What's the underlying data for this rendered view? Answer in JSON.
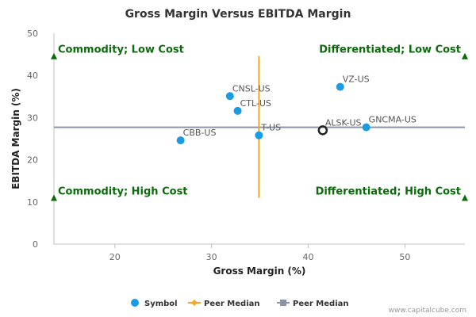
{
  "chart_data": {
    "type": "scatter",
    "title": "Gross Margin Versus EBITDA Margin",
    "xlabel": "Gross Margin (%)",
    "ylabel": "EBITDA Margin (%)",
    "xlim": [
      13.7,
      56.2
    ],
    "ylim": [
      0,
      50
    ],
    "x_ticks": [
      20,
      30,
      40,
      50
    ],
    "y_ticks": [
      0,
      10,
      20,
      30,
      40,
      50
    ],
    "grid": false,
    "points": [
      {
        "label": "CBB-US",
        "x": 26.8,
        "y": 24.6
      },
      {
        "label": "CNSL-US",
        "x": 31.9,
        "y": 35.1
      },
      {
        "label": "CTL-US",
        "x": 32.7,
        "y": 31.6
      },
      {
        "label": "T-US",
        "x": 34.9,
        "y": 25.8
      },
      {
        "label": "VZ-US",
        "x": 43.3,
        "y": 37.3
      },
      {
        "label": "GNCMA-US",
        "x": 46.0,
        "y": 27.7
      }
    ],
    "highlight": {
      "label": "ALSK-US",
      "x": 41.5,
      "y": 27.0
    },
    "peer_median_x": {
      "x": 34.9,
      "y_range": [
        11.0,
        44.6
      ]
    },
    "peer_median_y": {
      "y": 27.7,
      "x_range": [
        13.7,
        56.2
      ]
    },
    "quadrants": [
      {
        "text": "Commodity; Low Cost",
        "x": 13.7,
        "y": 44.6,
        "align": "left"
      },
      {
        "text": "Differentiated; Low Cost",
        "x": 56.2,
        "y": 44.6,
        "align": "right"
      },
      {
        "text": "Commodity; High Cost",
        "x": 13.7,
        "y": 11.0,
        "align": "left"
      },
      {
        "text": "Differentiated; High Cost",
        "x": 56.2,
        "y": 11.0,
        "align": "right"
      }
    ],
    "legend": {
      "placement": "bottom",
      "items": [
        {
          "label": "Symbol",
          "marker": "circle",
          "color": "#1a9be6"
        },
        {
          "label": "Peer Median",
          "marker": "diamond-line",
          "color": "#f5a623"
        },
        {
          "label": "Peer Median",
          "marker": "square-line",
          "color": "#8a93aa"
        }
      ]
    },
    "credit": "www.capitalcube.com"
  },
  "colors": {
    "point": "#1a9be6",
    "highlight": "#222222",
    "median_x": "#f5a623",
    "median_y": "#8a93aa",
    "quadrant": "#0b6b0b",
    "axis": "#c0c0c0"
  }
}
